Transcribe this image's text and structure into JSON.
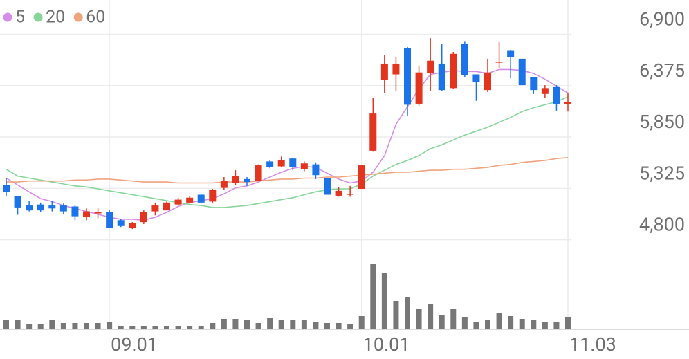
{
  "chart_data": {
    "type": "candlestick",
    "categories": [
      null,
      null,
      null,
      null,
      null,
      null,
      null,
      null,
      null,
      "09.01",
      null,
      null,
      null,
      null,
      null,
      null,
      null,
      null,
      null,
      null,
      null,
      null,
      null,
      null,
      null,
      null,
      null,
      null,
      null,
      null,
      null,
      "10.01",
      null,
      null,
      null,
      null,
      null,
      null,
      null,
      null,
      null,
      null,
      null,
      null,
      null,
      null,
      null,
      null,
      null,
      "11.03"
    ],
    "open": [
      5360,
      5245,
      5150,
      5160,
      5150,
      5150,
      5140,
      5030,
      5070,
      5080,
      5000,
      4920,
      4980,
      5090,
      5100,
      5160,
      5180,
      5260,
      5190,
      5330,
      5380,
      5420,
      5400,
      5600,
      5550,
      5630,
      5520,
      5570,
      5430,
      5250,
      5260,
      5320,
      5710,
      6430,
      6490,
      6760,
      6190,
      6500,
      6600,
      6350,
      6800,
      6490,
      6330,
      6610,
      6730,
      6650,
      6460,
      6290,
      6360,
      6190
    ],
    "high": [
      5430,
      5245,
      5200,
      5180,
      5200,
      5170,
      5150,
      5120,
      5120,
      5100,
      5010,
      4980,
      5100,
      5180,
      5190,
      5230,
      5250,
      5270,
      5320,
      5440,
      5510,
      5440,
      5570,
      5610,
      5650,
      5640,
      5600,
      5590,
      5430,
      5340,
      5350,
      5560,
      6250,
      6690,
      6670,
      6770,
      6580,
      6860,
      6800,
      6720,
      6830,
      6490,
      6650,
      6820,
      6740,
      6650,
      6460,
      6380,
      6380,
      6300
    ],
    "low": [
      5250,
      5055,
      5090,
      5080,
      5090,
      5060,
      5000,
      5000,
      5020,
      4920,
      4930,
      4910,
      4960,
      5050,
      5100,
      5150,
      5170,
      5170,
      5180,
      5310,
      5360,
      5350,
      5400,
      5530,
      5540,
      5510,
      5500,
      5420,
      5260,
      5240,
      5240,
      5320,
      5700,
      6300,
      6320,
      6070,
      6170,
      6320,
      6320,
      6340,
      6460,
      6220,
      6310,
      6550,
      6450,
      6380,
      6290,
      6250,
      6120,
      6110
    ],
    "close": [
      5290,
      5130,
      5100,
      5100,
      5120,
      5090,
      5040,
      5090,
      5080,
      4920,
      4940,
      4970,
      5080,
      5150,
      5180,
      5210,
      5230,
      5180,
      5310,
      5400,
      5450,
      5390,
      5560,
      5540,
      5610,
      5540,
      5580,
      5460,
      5260,
      5300,
      5270,
      5560,
      6090,
      6600,
      6600,
      6180,
      6510,
      6630,
      6330,
      6700,
      6480,
      6410,
      6510,
      6620,
      6670,
      6380,
      6330,
      6350,
      6190,
      6210
    ],
    "volume": [
      12,
      12,
      6,
      6,
      12,
      8,
      8,
      8,
      8,
      10,
      3,
      4,
      4,
      4,
      3,
      3,
      4,
      4,
      8,
      14,
      14,
      12,
      8,
      15,
      12,
      12,
      12,
      10,
      8,
      8,
      6,
      18,
      94,
      80,
      40,
      46,
      28,
      36,
      20,
      28,
      17,
      10,
      12,
      22,
      18,
      14,
      12,
      10,
      10,
      16
    ],
    "up_color": "#e3341f",
    "down_color": "#1a73e8",
    "volume_color": "#777777",
    "series": [
      {
        "name": "5",
        "color": "#d58de8",
        "values": [
          5430,
          5360,
          5290,
          5220,
          5190,
          5150,
          5120,
          5090,
          5060,
          5030,
          5010,
          5010,
          5000,
          5030,
          5080,
          5140,
          5180,
          5200,
          5220,
          5270,
          5330,
          5350,
          5390,
          5440,
          5490,
          5530,
          5550,
          5540,
          5480,
          5420,
          5380,
          5400,
          5490,
          5660,
          5980,
          6160,
          6340,
          6490,
          6510,
          6530,
          6520,
          6520,
          6500,
          6540,
          6540,
          6530,
          6500,
          6440,
          6370,
          6300
        ]
      },
      {
        "name": "20",
        "color": "#86d69a",
        "values": [
          5520,
          5450,
          5430,
          5410,
          5390,
          5370,
          5350,
          5340,
          5320,
          5300,
          5280,
          5260,
          5240,
          5220,
          5200,
          5180,
          5160,
          5150,
          5130,
          5130,
          5140,
          5150,
          5170,
          5190,
          5210,
          5230,
          5260,
          5290,
          5310,
          5320,
          5320,
          5370,
          5450,
          5510,
          5570,
          5610,
          5660,
          5730,
          5770,
          5820,
          5870,
          5910,
          5950,
          6000,
          6050,
          6110,
          6150,
          6180,
          6210,
          6260
        ]
      },
      {
        "name": "60",
        "color": "#f0a37f",
        "values": [
          5390,
          5390,
          5400,
          5400,
          5400,
          5400,
          5410,
          5410,
          5420,
          5420,
          5410,
          5400,
          5390,
          5390,
          5390,
          5380,
          5380,
          5380,
          5380,
          5390,
          5390,
          5390,
          5400,
          5410,
          5420,
          5420,
          5430,
          5430,
          5440,
          5440,
          5450,
          5460,
          5470,
          5480,
          5490,
          5490,
          5500,
          5510,
          5510,
          5520,
          5520,
          5530,
          5540,
          5560,
          5570,
          5590,
          5600,
          5610,
          5630,
          5640
        ]
      }
    ],
    "ylim": [
      4790,
      7250
    ],
    "yticks": [
      {
        "value": 4800,
        "label": "4,800"
      },
      {
        "value": 5325,
        "label": "5,325"
      },
      {
        "value": 5850,
        "label": "5,850"
      },
      {
        "value": 6375,
        "label": "6,375"
      },
      {
        "value": 6900,
        "label": "6,900"
      }
    ],
    "grid": true
  }
}
